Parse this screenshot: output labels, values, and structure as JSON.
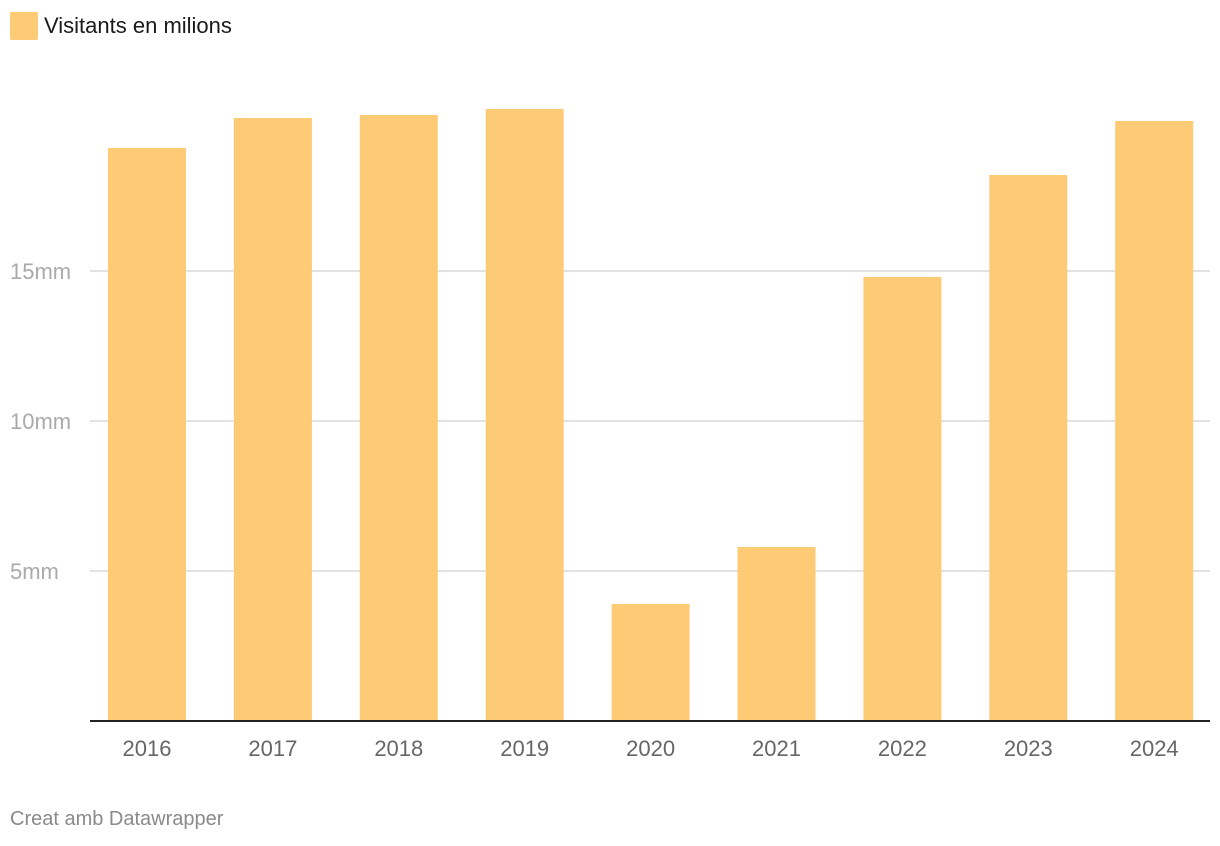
{
  "legend": {
    "label": "Visitants en milions",
    "color": "#fdca76"
  },
  "footer": {
    "credit": "Creat amb Datawrapper"
  },
  "colors": {
    "bar": "#fdca76",
    "grid": "#e2e2e2",
    "axis": "#222222",
    "y_tick_text": "#aaaaaa",
    "x_tick_text": "#666666"
  },
  "chart_data": {
    "type": "bar",
    "categories": [
      "2016",
      "2017",
      "2018",
      "2019",
      "2020",
      "2021",
      "2022",
      "2023",
      "2024"
    ],
    "series": [
      {
        "name": "Visitants en milions",
        "values": [
          19.1,
          20.1,
          20.2,
          20.4,
          3.9,
          5.8,
          14.8,
          18.2,
          20.0
        ]
      }
    ],
    "yticks": [
      {
        "value": 5,
        "label": "5mm"
      },
      {
        "value": 10,
        "label": "10mm"
      },
      {
        "value": 15,
        "label": "15mm"
      }
    ],
    "ylim": [
      0,
      22.2
    ],
    "grid": true,
    "legend_position": "top-left"
  }
}
